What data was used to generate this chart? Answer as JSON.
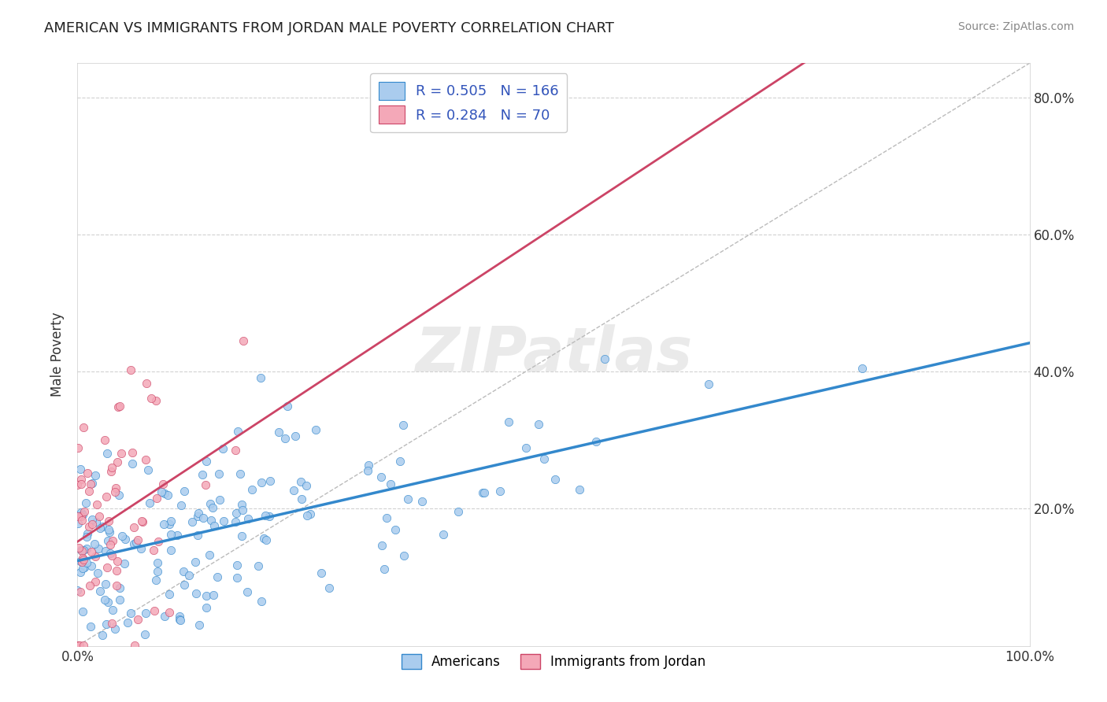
{
  "title": "AMERICAN VS IMMIGRANTS FROM JORDAN MALE POVERTY CORRELATION CHART",
  "source": "Source: ZipAtlas.com",
  "xlabel": "",
  "ylabel": "Male Poverty",
  "xlim": [
    0,
    1.0
  ],
  "ylim": [
    0,
    0.85
  ],
  "xtick_positions": [
    0.0,
    1.0
  ],
  "xtick_labels": [
    "0.0%",
    "100.0%"
  ],
  "ytick_positions": [
    0.2,
    0.4,
    0.6,
    0.8
  ],
  "ytick_labels": [
    "20.0%",
    "40.0%",
    "60.0%",
    "80.0%"
  ],
  "legend_R1": "R = 0.505",
  "legend_N1": "N = 166",
  "legend_R2": "R = 0.284",
  "legend_N2": "N = 70",
  "legend_label1": "Americans",
  "legend_label2": "Immigrants from Jordan",
  "color_american": "#aaccee",
  "color_jordan": "#f4a8b8",
  "color_line_american": "#3388cc",
  "color_line_jordan": "#cc4466",
  "color_title": "#222222",
  "watermark": "ZIPatlas",
  "background_color": "#ffffff",
  "grid_color": "#cccccc",
  "n_american": 166,
  "n_jordan": 70,
  "R_american": 0.505,
  "R_jordan": 0.284
}
